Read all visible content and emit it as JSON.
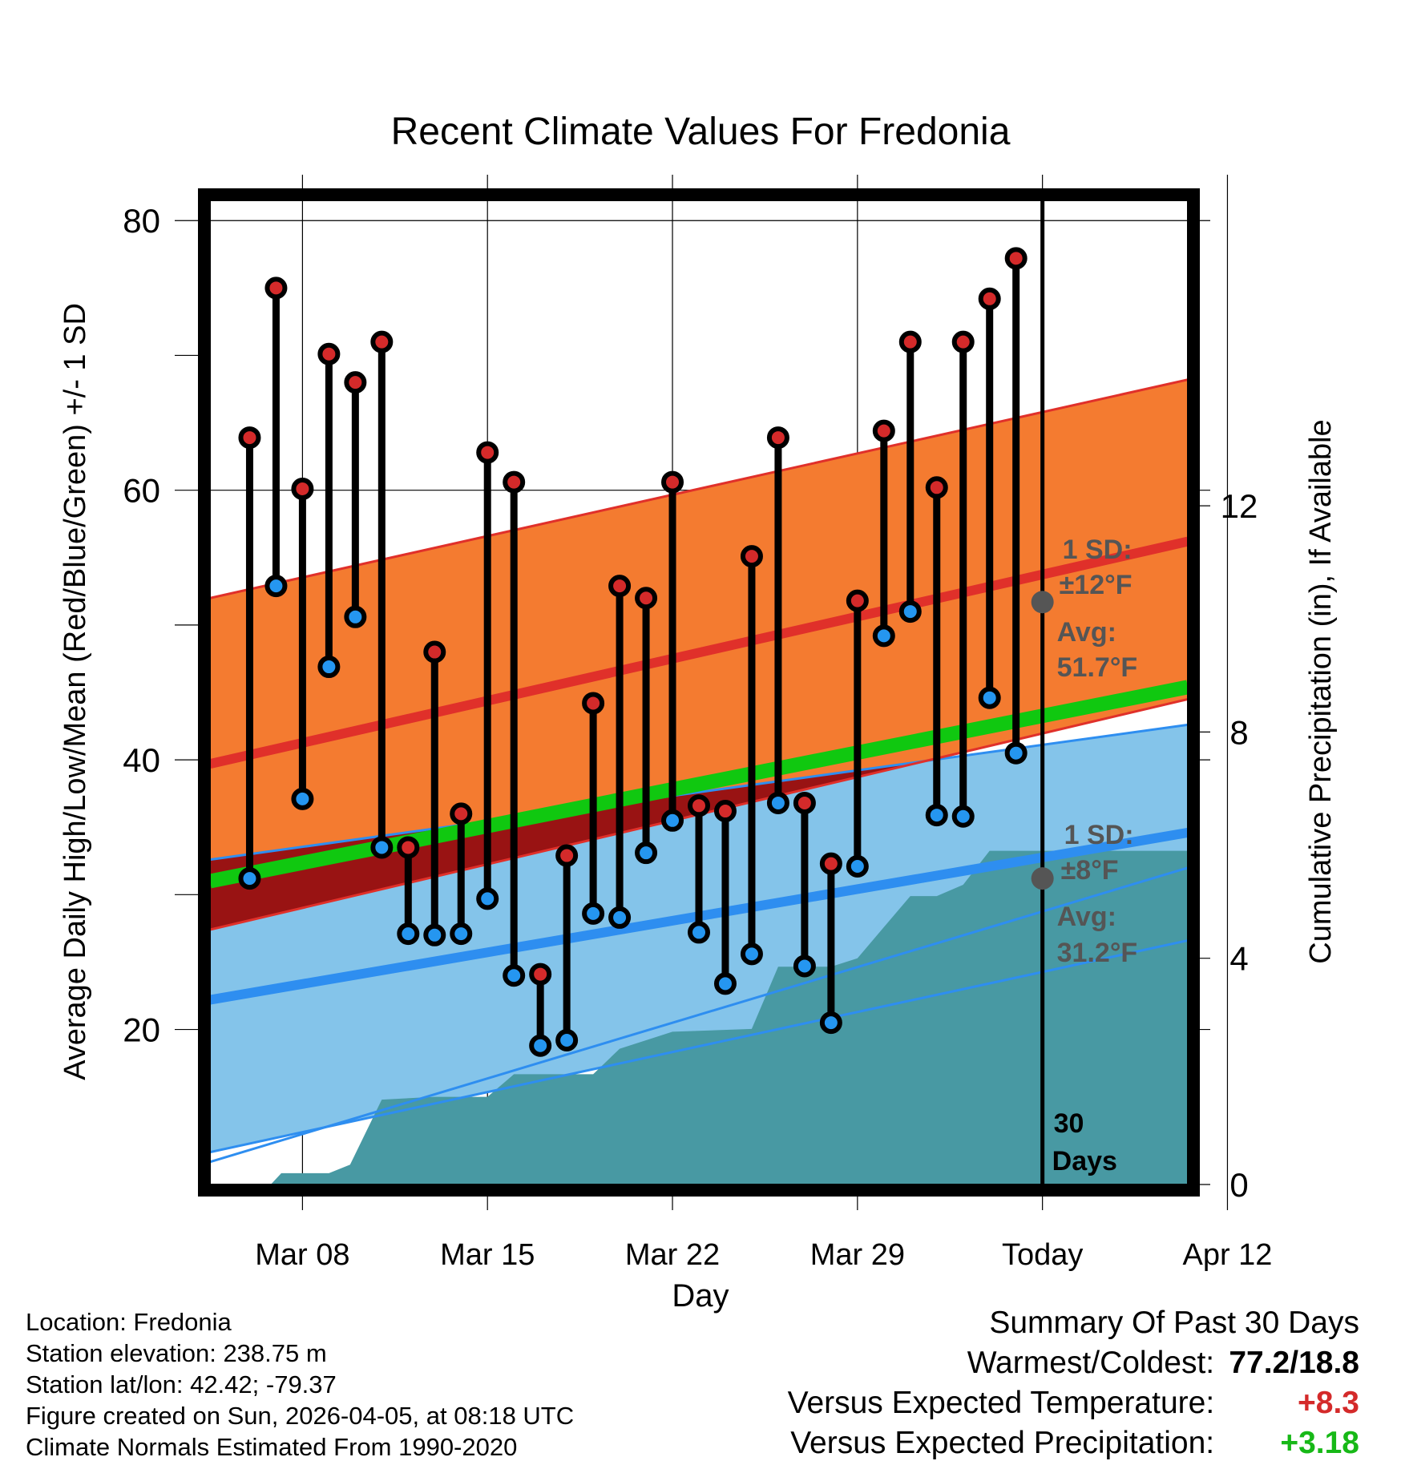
{
  "chart_data": {
    "type": "line",
    "title": "Recent Climate Values For Fredonia",
    "xlabel": "Day",
    "ylabel": "Average Daily High/Low/Mean (Red/Blue/Green) +/- 1 SD",
    "y2label": "Cumulative Precipitation (in), If Available",
    "x_range_days": [
      -27.5,
      9.5
    ],
    "ylim": [
      8.5,
      81.5
    ],
    "y2lim": [
      0,
      17.4
    ],
    "x_ticks": [
      {
        "day": -24,
        "label": "Mar 08"
      },
      {
        "day": -17,
        "label": "Mar 15"
      },
      {
        "day": -10,
        "label": "Mar 22"
      },
      {
        "day": -3,
        "label": "Mar 29"
      },
      {
        "day": 4,
        "label": "Today"
      },
      {
        "day": 11,
        "label": "Apr 12"
      }
    ],
    "y_ticks": [
      20,
      40,
      60,
      80
    ],
    "y2_ticks": [
      0,
      4,
      8,
      12
    ],
    "today_day": 4,
    "period_label": [
      "30",
      "Days"
    ],
    "daily_days": [
      -26,
      -25,
      -24,
      -23,
      -22,
      -21,
      -20,
      -19,
      -18,
      -17,
      -16,
      -15,
      -14,
      -13,
      -12,
      -11,
      -10,
      -9,
      -8,
      -7,
      -6,
      -5,
      -4,
      -3,
      -2,
      -1,
      0,
      1,
      2,
      3
    ],
    "daily_high": [
      63.9,
      75.0,
      60.1,
      70.1,
      68.0,
      71.0,
      33.5,
      48.0,
      36.0,
      62.8,
      60.6,
      24.1,
      32.9,
      44.2,
      52.9,
      52.0,
      60.6,
      36.6,
      36.2,
      55.1,
      63.9,
      36.8,
      32.3,
      51.8,
      64.4,
      71.0,
      60.2,
      71.0,
      74.2,
      77.2
    ],
    "daily_low": [
      31.2,
      52.9,
      37.1,
      46.9,
      50.6,
      33.5,
      27.1,
      27.0,
      27.1,
      29.7,
      24.0,
      18.8,
      19.2,
      28.6,
      28.3,
      33.1,
      35.5,
      27.2,
      23.4,
      25.6,
      36.8,
      24.7,
      20.5,
      32.1,
      49.2,
      51.0,
      35.9,
      35.8,
      44.6,
      40.5
    ],
    "normal_high": {
      "days": [
        -27.5,
        9.5
      ],
      "values": [
        39.7,
        56.2
      ],
      "sd_upper": [
        52.0,
        68.2
      ],
      "sd_lower": [
        27.4,
        44.5
      ]
    },
    "normal_low": {
      "days": [
        -27.5,
        9.5
      ],
      "values": [
        22.2,
        34.6
      ],
      "sd_upper": [
        32.6,
        42.6
      ],
      "sd_lower": [
        10.9,
        26.6
      ]
    },
    "normal_mean": {
      "days": [
        -27.5,
        9.5
      ],
      "values": [
        31.0,
        45.4
      ]
    },
    "normal_precip": {
      "days": [
        -27.5,
        9.5
      ],
      "values": [
        0.4,
        5.6
      ]
    },
    "cumulative_precip": {
      "days": [
        -27.5,
        -25.2,
        -24.8,
        -23.0,
        -22.2,
        -21.0,
        -19.0,
        -17.0,
        -16.0,
        -13.0,
        -12.0,
        -11.0,
        -10.0,
        -7.0,
        -6.0,
        -5.0,
        -4.0,
        -3.0,
        -2.0,
        -1.0,
        0.0,
        1.0,
        2.0,
        3.0,
        9.5
      ],
      "values": [
        0.0,
        0.0,
        0.2,
        0.2,
        0.35,
        1.5,
        1.55,
        1.55,
        1.95,
        1.95,
        2.4,
        2.55,
        2.7,
        2.75,
        3.85,
        3.85,
        3.85,
        4.0,
        4.55,
        5.1,
        5.1,
        5.3,
        5.9,
        5.9,
        5.9
      ]
    },
    "annotations": {
      "high_sd": {
        "line1": "1 SD:",
        "line2": "±12°F"
      },
      "high_avg": {
        "line1": "Avg:",
        "line2": "51.7°F",
        "value": 51.7
      },
      "low_sd": {
        "line1": "1 SD:",
        "line2": "±8°F"
      },
      "low_avg": {
        "line1": "Avg:",
        "line2": "31.2°F",
        "value": 31.2
      }
    },
    "colors": {
      "high_band": "#f47b30",
      "high_band_edge": "#e0302a",
      "high_line": "#e0302a",
      "low_band": "#84c4ea",
      "low_band_edge": "#2e8ef0",
      "low_line": "#2e8ef0",
      "mean_line": "#10c810",
      "overlap": "#991313",
      "precip": "#4899a3",
      "high_dot": "#d42a2a",
      "low_dot": "#2596f0",
      "annotation": "#555555"
    }
  },
  "info": {
    "location": "Location: Fredonia",
    "elevation": "Station elevation: 238.75 m",
    "latlon": "Station lat/lon: 42.42; -79.37",
    "created": "Figure created on Sun, 2026-04-05, at 08:18 UTC",
    "normals": "Climate Normals Estimated From 1990-2020"
  },
  "summary": {
    "title": "Summary Of Past 30 Days",
    "warm_cold_label": "Warmest/Coldest:",
    "warm_cold_value": "77.2/18.8",
    "temp_label": "Versus Expected Temperature:",
    "temp_value": "+8.3",
    "precip_label": "Versus Expected Precipitation:",
    "precip_value": "+3.18"
  }
}
